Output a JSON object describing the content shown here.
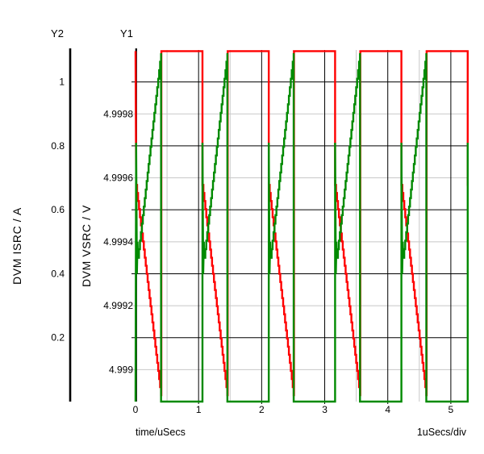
{
  "labels": {
    "y2_title": "Y2",
    "y1_title": "Y1",
    "y2_axis_name": "DVM ISRC / A",
    "y1_axis_name": "DVM VSRC / V",
    "x_axis_name": "time/uSecs",
    "x_scale_note": "1uSecs/div"
  },
  "style": {
    "background": "#FFFFFF",
    "grid_major_color": "#000000",
    "grid_minor_color": "#C8C8C8",
    "axis_line_color": "#000000",
    "isrc_color": "#FF0000",
    "vsrc_color": "#008A00"
  },
  "chart_data": {
    "type": "line",
    "title": "",
    "x_axis": {
      "label": "time/uSecs",
      "scale_note": "1uSecs/div",
      "range_us": [
        0,
        5.27
      ],
      "major_ticks": [
        0,
        1,
        2,
        3,
        4,
        5
      ],
      "tick_labels": [
        "0",
        "1",
        "2",
        "3",
        "4",
        "5"
      ],
      "minor_ticks": [
        0.5,
        1.5,
        2.5,
        3.5,
        4.5
      ],
      "grid": "major=black, minor=gray"
    },
    "y1_axis": {
      "label": "DVM VSRC / V",
      "title": "Y1",
      "range_v": [
        4.9989,
        5.0
      ],
      "ticks": [
        4.9998,
        4.9996,
        4.9994,
        4.9992,
        4.999
      ],
      "tick_labels": [
        "4.9998",
        "4.9996",
        "4.9994",
        "4.9992",
        "4.999"
      ],
      "gridline_color": "#C8C8C8"
    },
    "y2_axis": {
      "label": "DVM ISRC / A",
      "title": "Y2",
      "range_a": [
        0,
        1.1
      ],
      "ticks": [
        1,
        0.8,
        0.6,
        0.4,
        0.2
      ],
      "tick_labels": [
        "1",
        "0.8",
        "0.6",
        "0.4",
        "0.2"
      ],
      "gridline_color": "#000000"
    },
    "legend": "none",
    "series": [
      {
        "name": "DVM ISRC",
        "axis": "y2",
        "color": "#FF0000",
        "width": 2.4,
        "description": "Pulsed load current: steps down 1.1A to 0.68A, ramps to 0.02A over ~0.4us, steps back up to 1.1A, repeats every ~1.05us",
        "waveform": {
          "start_value": 1.0965,
          "t_first_event_us": 0.01,
          "period_us": 1.0515,
          "cycles": 6,
          "t_end_us": 5.27,
          "extend_to_end": true,
          "cycle_points": [
            [
              0,
              0.678,
              0
            ],
            [
              0.395,
              0.02,
              1
            ],
            [
              0.4,
              0.02,
              0
            ],
            [
              0.4,
              1.0965,
              0
            ],
            [
              1.0515,
              1.0965,
              0
            ]
          ]
        }
      },
      {
        "name": "DVM VSRC",
        "axis": "y1",
        "color": "#008A00",
        "width": 2.4,
        "description": "Source voltage ripple: spikes 4.9989V to ~4.9997V, settles ~4.99935V, ramps up to ~5.0000V over ~0.4us, drops to 4.9989V flat, repeats every ~1.05us",
        "waveform": {
          "start_value": 4.9989,
          "t_first_event_us": 0.01,
          "period_us": 1.0515,
          "cycles": 6,
          "t_end_us": 5.27,
          "extend_to_end": false,
          "cycle_points": [
            [
              0,
              4.99971,
              0
            ],
            [
              0.012,
              4.9993,
              0
            ],
            [
              0.022,
              4.9994,
              0
            ],
            [
              0.03,
              4.99935,
              0
            ],
            [
              0.395,
              4.99999,
              1
            ],
            [
              0.395,
              4.9989,
              0
            ],
            [
              1.0515,
              4.9989,
              0
            ]
          ]
        }
      }
    ]
  }
}
